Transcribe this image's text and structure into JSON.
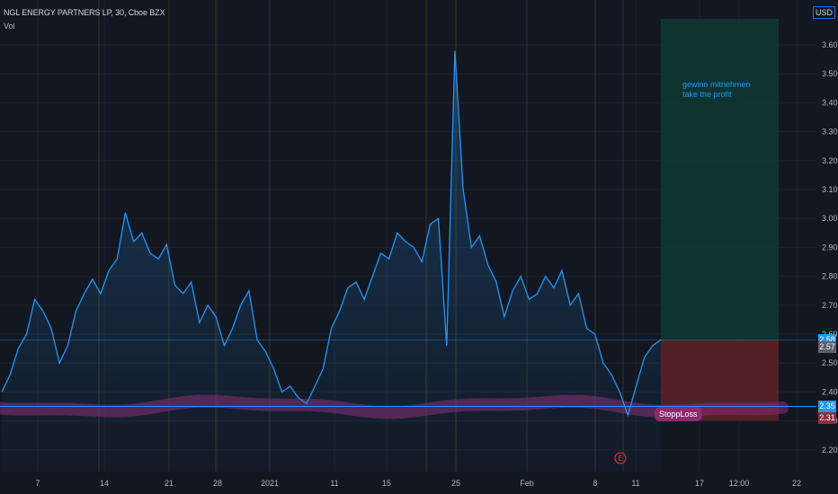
{
  "header": {
    "title": "NGL ENERGY PARTNERS LP, 30, Cboe BZX",
    "indicator": "Vol",
    "currency": "USD"
  },
  "annotation": {
    "text": "gewinn mitnehmen\ntake the profit"
  },
  "stoploss_label": "StoppLoss",
  "earnings_marker": "E",
  "price_tags": {
    "current": "2.58",
    "prev": "2.57",
    "support": "2.35",
    "stop": "2.31"
  },
  "colors": {
    "background": "#131722",
    "line": "#2196f3",
    "profit_zone": "#0f3a33",
    "loss_zone": "#5a2126",
    "support_band": "#8e2a6e",
    "grid": "#1e222d"
  },
  "chart_data": {
    "type": "line",
    "title": "NGL ENERGY PARTNERS LP, 30, Cboe BZX",
    "y_axis": {
      "ticks": [
        "3.60",
        "3.50",
        "3.40",
        "3.30",
        "3.20",
        "3.10",
        "3.00",
        "2.90",
        "2.80",
        "2.70",
        "2.60",
        "2.50",
        "2.40",
        "2.30",
        "2.20"
      ],
      "range": [
        2.12,
        3.7
      ]
    },
    "x_axis": {
      "ticks": [
        "7",
        "14",
        "21",
        "28",
        "2021",
        "11",
        "15",
        "25",
        "Feb",
        "8",
        "11",
        "17",
        "12:00",
        "22"
      ]
    },
    "series": [
      {
        "values": [
          2.4,
          2.46,
          2.55,
          2.6,
          2.72,
          2.68,
          2.62,
          2.5,
          2.56,
          2.68,
          2.74,
          2.79,
          2.74,
          2.82,
          2.86,
          3.02,
          2.92,
          2.95,
          2.88,
          2.86,
          2.91,
          2.77,
          2.74,
          2.78,
          2.64,
          2.7,
          2.66,
          2.56,
          2.62,
          2.7,
          2.75,
          2.58,
          2.54,
          2.48,
          2.4,
          2.42,
          2.38,
          2.36,
          2.42,
          2.48,
          2.62,
          2.68,
          2.76,
          2.78,
          2.72,
          2.8,
          2.88,
          2.86,
          2.95,
          2.92,
          2.9,
          2.85,
          2.98,
          3.0,
          2.56,
          3.58,
          3.1,
          2.9,
          2.94,
          2.84,
          2.78,
          2.66,
          2.75,
          2.8,
          2.72,
          2.74,
          2.8,
          2.76,
          2.82,
          2.7,
          2.74,
          2.62,
          2.6,
          2.5,
          2.46,
          2.4,
          2.32,
          2.42,
          2.52,
          2.56,
          2.58
        ]
      }
    ],
    "levels": {
      "profit_top": 3.69,
      "entry": 2.58,
      "stop": 2.31,
      "support": 2.35
    }
  }
}
